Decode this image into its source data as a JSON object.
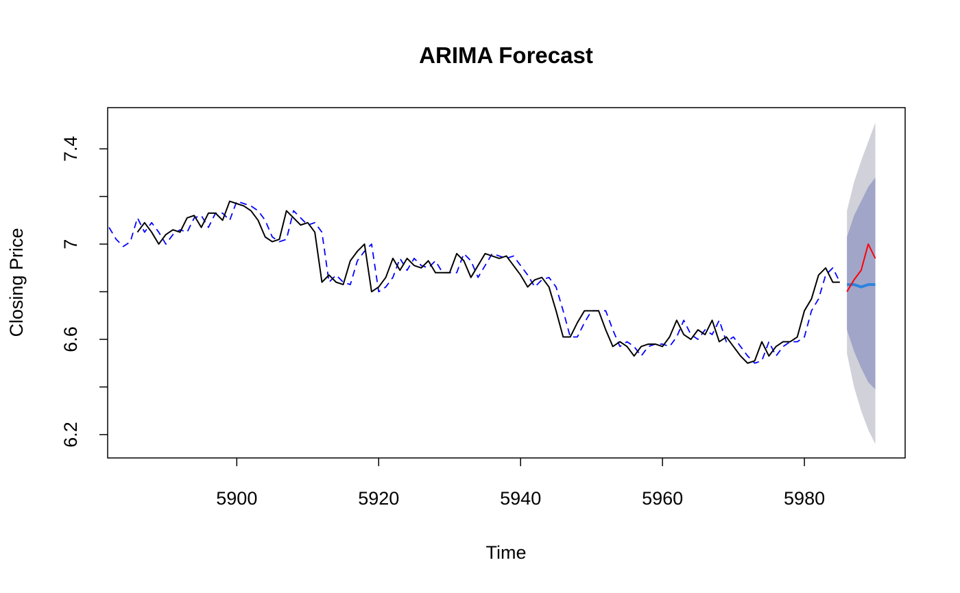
{
  "chart_data": {
    "type": "line",
    "title": "ARIMA Forecast",
    "x_label": "Time",
    "y_label": "Closing Price",
    "xlim": [
      5881.8,
      5994.2
    ],
    "ylim": [
      6.102,
      7.573
    ],
    "xticks": [
      5900,
      5920,
      5940,
      5960,
      5980
    ],
    "yticks": [
      6.2,
      6.6,
      7.0,
      7.4
    ],
    "minor_yticks": [
      6.4,
      6.8,
      7.2
    ],
    "bands": [
      {
        "color": "#d1d1d9",
        "x": [
          5986,
          5987,
          5988,
          5989,
          5990
        ],
        "lower": [
          6.54,
          6.4,
          6.3,
          6.22,
          6.16
        ],
        "upper": [
          7.14,
          7.26,
          7.35,
          7.43,
          7.51
        ]
      },
      {
        "color": "#a1a5c8",
        "x": [
          5986,
          5987,
          5988,
          5989,
          5990
        ],
        "lower": [
          6.64,
          6.55,
          6.48,
          6.42,
          6.39
        ],
        "upper": [
          7.03,
          7.12,
          7.18,
          7.24,
          7.28
        ]
      }
    ],
    "series": [
      {
        "color": "#0000ff",
        "dash": true,
        "width": 1.8,
        "x": [
          5882,
          5883,
          5884,
          5885,
          5886,
          5887,
          5888,
          5889,
          5890,
          5891,
          5892,
          5893,
          5894,
          5895,
          5896,
          5897,
          5898,
          5899,
          5900,
          5901,
          5902,
          5903,
          5904,
          5905,
          5906,
          5907,
          5908,
          5909,
          5910,
          5911,
          5912,
          5913,
          5914,
          5915,
          5916,
          5917,
          5918,
          5919,
          5920,
          5921,
          5922,
          5923,
          5924,
          5925,
          5926,
          5927,
          5928,
          5929,
          5930,
          5931,
          5932,
          5933,
          5934,
          5935,
          5936,
          5937,
          5938,
          5939,
          5940,
          5941,
          5942,
          5943,
          5944,
          5945,
          5946,
          5947,
          5948,
          5949,
          5950,
          5951,
          5952,
          5953,
          5954,
          5955,
          5956,
          5957,
          5958,
          5959,
          5960,
          5961,
          5962,
          5963,
          5964,
          5965,
          5966,
          5967,
          5968,
          5969,
          5970,
          5971,
          5972,
          5973,
          5974,
          5975,
          5976,
          5977,
          5978,
          5979,
          5980,
          5981,
          5982,
          5983,
          5984,
          5985
        ],
        "values": [
          7.07,
          7.02,
          6.99,
          7.01,
          7.11,
          7.05,
          7.09,
          7.05,
          7.0,
          7.04,
          7.06,
          7.05,
          7.11,
          7.12,
          7.07,
          7.13,
          7.13,
          7.1,
          7.18,
          7.17,
          7.16,
          7.14,
          7.1,
          7.03,
          7.01,
          7.02,
          7.14,
          7.11,
          7.08,
          7.09,
          7.05,
          6.84,
          6.87,
          6.84,
          6.83,
          6.93,
          6.97,
          7.0,
          6.8,
          6.82,
          6.86,
          6.94,
          6.89,
          6.94,
          6.91,
          6.9,
          6.93,
          6.88,
          6.88,
          6.88,
          6.96,
          6.93,
          6.86,
          6.91,
          6.96,
          6.95,
          6.94,
          6.95,
          6.91,
          6.87,
          6.82,
          6.85,
          6.86,
          6.82,
          6.72,
          6.61,
          6.61,
          6.67,
          6.72,
          6.72,
          6.72,
          6.64,
          6.57,
          6.59,
          6.57,
          6.53,
          6.57,
          6.58,
          6.58,
          6.57,
          6.61,
          6.68,
          6.62,
          6.6,
          6.64,
          6.62,
          6.68,
          6.59,
          6.61,
          6.57,
          6.53,
          6.5,
          6.51,
          6.59,
          6.53,
          6.57,
          6.59,
          6.59,
          6.61,
          6.72,
          6.77,
          6.87,
          6.9,
          6.84
        ]
      },
      {
        "color": "#000000",
        "dash": false,
        "width": 2,
        "x": [
          5886,
          5887,
          5888,
          5889,
          5890,
          5891,
          5892,
          5893,
          5894,
          5895,
          5896,
          5897,
          5898,
          5899,
          5900,
          5901,
          5902,
          5903,
          5904,
          5905,
          5906,
          5907,
          5908,
          5909,
          5910,
          5911,
          5912,
          5913,
          5914,
          5915,
          5916,
          5917,
          5918,
          5919,
          5920,
          5921,
          5922,
          5923,
          5924,
          5925,
          5926,
          5927,
          5928,
          5929,
          5930,
          5931,
          5932,
          5933,
          5934,
          5935,
          5936,
          5937,
          5938,
          5939,
          5940,
          5941,
          5942,
          5943,
          5944,
          5945,
          5946,
          5947,
          5948,
          5949,
          5950,
          5951,
          5952,
          5953,
          5954,
          5955,
          5956,
          5957,
          5958,
          5959,
          5960,
          5961,
          5962,
          5963,
          5964,
          5965,
          5966,
          5967,
          5968,
          5969,
          5970,
          5971,
          5972,
          5973,
          5974,
          5975,
          5976,
          5977,
          5978,
          5979,
          5980,
          5981,
          5982,
          5983,
          5984,
          5985
        ],
        "values": [
          7.05,
          7.09,
          7.05,
          7.0,
          7.04,
          7.06,
          7.05,
          7.11,
          7.12,
          7.07,
          7.13,
          7.13,
          7.1,
          7.18,
          7.17,
          7.16,
          7.14,
          7.1,
          7.03,
          7.01,
          7.02,
          7.14,
          7.11,
          7.08,
          7.09,
          7.05,
          6.84,
          6.87,
          6.84,
          6.83,
          6.93,
          6.97,
          7.0,
          6.8,
          6.82,
          6.86,
          6.94,
          6.89,
          6.94,
          6.91,
          6.9,
          6.93,
          6.88,
          6.88,
          6.88,
          6.96,
          6.93,
          6.86,
          6.91,
          6.96,
          6.95,
          6.94,
          6.95,
          6.91,
          6.87,
          6.82,
          6.85,
          6.86,
          6.82,
          6.72,
          6.61,
          6.61,
          6.67,
          6.72,
          6.72,
          6.72,
          6.64,
          6.57,
          6.59,
          6.57,
          6.53,
          6.57,
          6.58,
          6.58,
          6.57,
          6.61,
          6.68,
          6.62,
          6.6,
          6.64,
          6.62,
          6.68,
          6.59,
          6.61,
          6.57,
          6.53,
          6.5,
          6.51,
          6.59,
          6.53,
          6.57,
          6.59,
          6.59,
          6.61,
          6.72,
          6.77,
          6.87,
          6.9,
          6.84,
          6.84
        ]
      },
      {
        "color": "#2a84de",
        "dash": false,
        "width": 4,
        "x": [
          5986,
          5987,
          5988,
          5989,
          5990
        ],
        "values": [
          6.83,
          6.83,
          6.82,
          6.83,
          6.83
        ]
      },
      {
        "color": "#ff0000",
        "dash": false,
        "width": 2,
        "x": [
          5986,
          5987,
          5988,
          5989,
          5990
        ],
        "values": [
          6.8,
          6.85,
          6.89,
          7.0,
          6.94
        ]
      }
    ]
  }
}
